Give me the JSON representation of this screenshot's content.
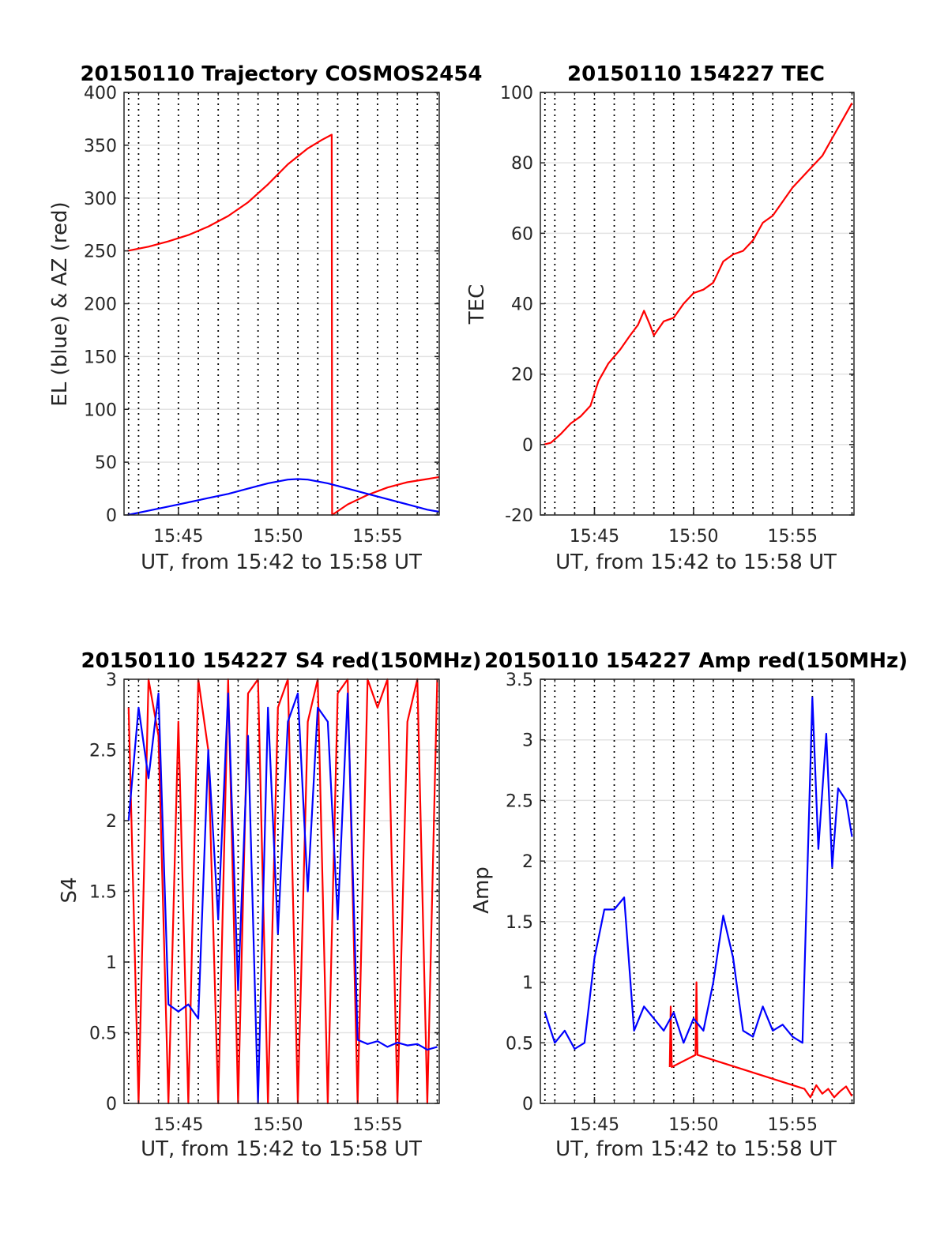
{
  "chart_data": [
    {
      "type": "line",
      "title": "20150110 Trajectory COSMOS2454",
      "xlabel": "UT, from 15:42 to 15:58 UT",
      "ylabel": "EL (blue) & AZ (red)",
      "xlim": [
        42.27,
        58.1
      ],
      "ylim": [
        0,
        400
      ],
      "yticks": [
        0,
        50,
        100,
        150,
        200,
        250,
        300,
        350,
        400
      ],
      "xticks": [
        "15:45",
        "15:50",
        "15:55"
      ],
      "grid": "on",
      "series": [
        {
          "color": "#ff0000",
          "x": [
            42.45,
            43.5,
            44.5,
            45.5,
            46.5,
            47.5,
            48.5,
            49.5,
            50.5,
            51.5,
            52.2,
            52.7,
            52.72,
            53.5,
            54.5,
            55.5,
            56.5,
            57.5,
            58.1
          ],
          "y": [
            250,
            254,
            259,
            265,
            273,
            283,
            296,
            313,
            332,
            347,
            355,
            360,
            0,
            10,
            19,
            26,
            31,
            34,
            36
          ]
        },
        {
          "color": "#0000ff",
          "x": [
            42.45,
            43.5,
            44.5,
            45.5,
            46.5,
            47.5,
            48.5,
            49.5,
            50.5,
            51.0,
            51.5,
            52.5,
            53.5,
            54.5,
            55.5,
            56.5,
            57.5,
            58.1
          ],
          "y": [
            0,
            4,
            8,
            12,
            16,
            20,
            25,
            30,
            33.5,
            34,
            33.5,
            30,
            25,
            20,
            15,
            10,
            5,
            3
          ]
        }
      ]
    },
    {
      "type": "line",
      "title": "20150110 154227 TEC",
      "xlabel": "UT, from 15:42 to 15:58 UT",
      "ylabel": "TEC",
      "xlim": [
        42.27,
        58.1
      ],
      "ylim": [
        -20,
        100
      ],
      "yticks": [
        -20,
        0,
        20,
        40,
        60,
        80,
        100
      ],
      "xticks": [
        "15:45",
        "15:50",
        "15:55"
      ],
      "grid": "on",
      "series": [
        {
          "color": "#ff0000",
          "x": [
            42.45,
            42.8,
            43.3,
            43.8,
            44.3,
            44.8,
            45.2,
            45.7,
            46.3,
            46.8,
            47.2,
            47.5,
            47.8,
            48.0,
            48.5,
            49.0,
            49.5,
            50.0,
            50.5,
            51.0,
            51.5,
            52.0,
            52.5,
            53.0,
            53.5,
            54.0,
            54.5,
            55.0,
            55.5,
            56.0,
            56.5,
            57.0,
            57.5,
            58.0
          ],
          "y": [
            0,
            0.5,
            3,
            6,
            8,
            11,
            18,
            23,
            27,
            31,
            34,
            38,
            34,
            31,
            35,
            36,
            40,
            43,
            44,
            46,
            52,
            54,
            55,
            58,
            63,
            65,
            69,
            73,
            76,
            79,
            82,
            87,
            92,
            97
          ]
        }
      ]
    },
    {
      "type": "line",
      "title": "20150110 154227 S4 red(150MHz)",
      "xlabel": "UT, from 15:42 to 15:58 UT",
      "ylabel": "S4",
      "xlim": [
        42.27,
        58.1
      ],
      "ylim": [
        0,
        3
      ],
      "yticks": [
        0,
        0.5,
        1,
        1.5,
        2,
        2.5,
        3
      ],
      "yticklabels": [
        "0",
        "0.5",
        "1",
        "1.5",
        "2",
        "2.5",
        "3"
      ],
      "xticks": [
        "15:45",
        "15:50",
        "15:55"
      ],
      "grid": "on",
      "series": [
        {
          "color": "#ff0000",
          "x": [
            42.5,
            43.0,
            43.5,
            44.0,
            44.5,
            45.0,
            45.5,
            46.0,
            46.5,
            47.0,
            47.5,
            48.0,
            48.5,
            49.0,
            49.5,
            50.0,
            50.5,
            51.0,
            51.5,
            52.0,
            52.5,
            53.0,
            53.5,
            54.0,
            54.5,
            55.0,
            55.5,
            56.0,
            56.5,
            57.0,
            57.5,
            58.0
          ],
          "y": [
            2.8,
            0,
            3,
            2.6,
            0,
            2.7,
            0,
            3,
            2.5,
            0,
            3,
            0,
            2.9,
            3,
            0,
            2.8,
            3,
            0,
            2.7,
            3,
            0,
            2.9,
            3,
            0,
            3,
            2.8,
            3,
            0,
            2.7,
            3,
            0,
            3
          ]
        },
        {
          "color": "#0000ff",
          "x": [
            42.5,
            43.0,
            43.5,
            44.0,
            44.5,
            45.0,
            45.5,
            46.0,
            46.5,
            47.0,
            47.5,
            48.0,
            48.5,
            49.0,
            49.5,
            50.0,
            50.5,
            51.0,
            51.5,
            52.0,
            52.5,
            53.0,
            53.5,
            54.0,
            54.5,
            55.0,
            55.5,
            56.0,
            56.5,
            57.0,
            57.5,
            58.0
          ],
          "y": [
            2.0,
            2.8,
            2.3,
            2.9,
            0.7,
            0.65,
            0.7,
            0.6,
            2.5,
            1.3,
            2.9,
            0.8,
            2.6,
            0,
            2.8,
            1.2,
            2.7,
            2.9,
            1.5,
            2.8,
            2.7,
            1.3,
            2.9,
            0.45,
            0.42,
            0.44,
            0.4,
            0.43,
            0.41,
            0.42,
            0.38,
            0.4
          ]
        }
      ]
    },
    {
      "type": "line",
      "title": "20150110 154227 Amp red(150MHz)",
      "xlabel": "UT, from 15:42 to 15:58 UT",
      "ylabel": "Amp",
      "xlim": [
        42.27,
        58.1
      ],
      "ylim": [
        0,
        3.5
      ],
      "yticks": [
        0,
        0.5,
        1,
        1.5,
        2,
        2.5,
        3,
        3.5
      ],
      "yticklabels": [
        "0",
        "0.5",
        "1",
        "1.5",
        "2",
        "2.5",
        "3",
        "3.5"
      ],
      "xticks": [
        "15:45",
        "15:50",
        "15:55"
      ],
      "grid": "on",
      "series": [
        {
          "color": "#ff0000",
          "x": [
            48.8,
            48.85,
            48.9,
            50.1,
            50.15,
            50.2,
            55.6,
            55.9,
            56.2,
            56.5,
            56.8,
            57.1,
            57.4,
            57.7,
            58.0
          ],
          "y": [
            0.3,
            0.8,
            0.3,
            0.4,
            1.0,
            0.4,
            0.12,
            0.05,
            0.15,
            0.08,
            0.12,
            0.05,
            0.1,
            0.14,
            0.06
          ]
        },
        {
          "color": "#0000ff",
          "x": [
            42.5,
            43.0,
            43.5,
            44.0,
            44.5,
            45.0,
            45.5,
            46.0,
            46.5,
            47.0,
            47.5,
            48.0,
            48.5,
            49.0,
            49.5,
            50.0,
            50.5,
            51.0,
            51.5,
            52.0,
            52.5,
            53.0,
            53.5,
            54.0,
            54.5,
            55.0,
            55.5,
            56.0,
            56.3,
            56.7,
            57.0,
            57.3,
            57.7,
            58.0
          ],
          "y": [
            0.75,
            0.5,
            0.6,
            0.45,
            0.5,
            1.2,
            1.6,
            1.6,
            1.7,
            0.6,
            0.8,
            0.7,
            0.6,
            0.75,
            0.5,
            0.7,
            0.6,
            1.0,
            1.55,
            1.2,
            0.6,
            0.55,
            0.8,
            0.6,
            0.65,
            0.55,
            0.5,
            3.35,
            2.1,
            3.05,
            1.95,
            2.6,
            2.5,
            2.2
          ]
        }
      ]
    }
  ]
}
